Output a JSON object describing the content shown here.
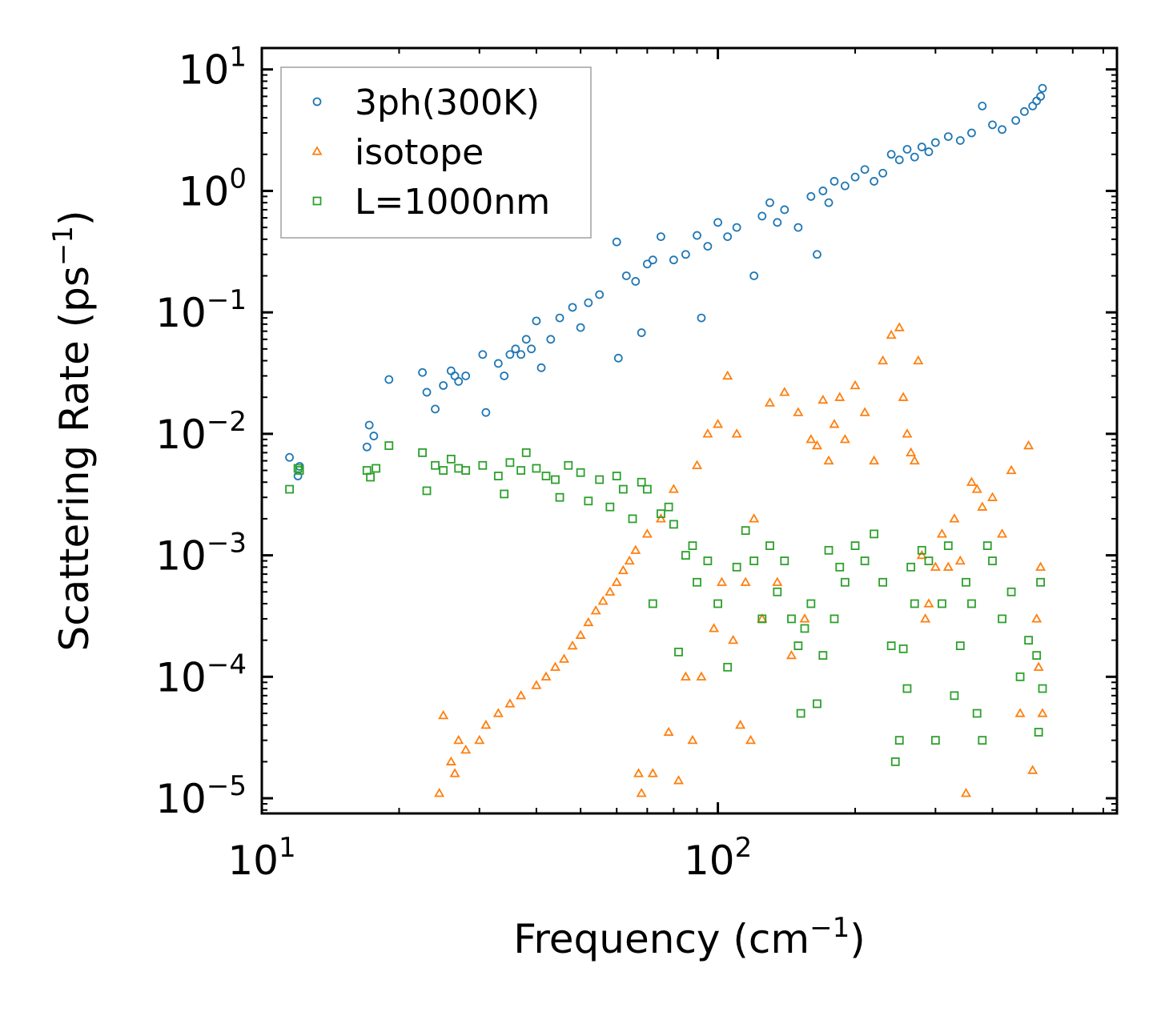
{
  "chart_data": {
    "type": "scatter",
    "title": "",
    "xlabel": "Frequency (cm",
    "xlabel_sup": "−1",
    "xlabel_end": ")",
    "ylabel": "Scattering Rate (ps",
    "ylabel_sup": "−1",
    "ylabel_end": ")",
    "xscale": "log",
    "yscale": "log",
    "xlim": [
      10,
      750
    ],
    "ylim": [
      7.5e-06,
      15
    ],
    "x_ticks": [
      {
        "value": 10,
        "base": "10",
        "exp": "1"
      },
      {
        "value": 100,
        "base": "10",
        "exp": "2"
      }
    ],
    "y_ticks": [
      {
        "value": 10,
        "base": "10",
        "exp": "1"
      },
      {
        "value": 1,
        "base": "10",
        "exp": "0"
      },
      {
        "value": 0.1,
        "base": "10",
        "exp": "−1"
      },
      {
        "value": 0.01,
        "base": "10",
        "exp": "−2"
      },
      {
        "value": 0.001,
        "base": "10",
        "exp": "−3"
      },
      {
        "value": 0.0001,
        "base": "10",
        "exp": "−4"
      },
      {
        "value": 1e-05,
        "base": "10",
        "exp": "−5"
      }
    ],
    "legend_position": "top-left",
    "series": [
      {
        "name": "3ph(300K)",
        "marker": "circle",
        "color": "#1f77b4",
        "points": [
          [
            11.5,
            0.0064
          ],
          [
            12,
            0.0045
          ],
          [
            12.1,
            0.0054
          ],
          [
            17,
            0.0078
          ],
          [
            17.2,
            0.0118
          ],
          [
            17.6,
            0.0096
          ],
          [
            19,
            0.028
          ],
          [
            22.5,
            0.032
          ],
          [
            23,
            0.022
          ],
          [
            24,
            0.016
          ],
          [
            25,
            0.025
          ],
          [
            26,
            0.033
          ],
          [
            26.5,
            0.03
          ],
          [
            27,
            0.027
          ],
          [
            28,
            0.03
          ],
          [
            30.5,
            0.045
          ],
          [
            31,
            0.015
          ],
          [
            33,
            0.038
          ],
          [
            34,
            0.03
          ],
          [
            35,
            0.045
          ],
          [
            36,
            0.05
          ],
          [
            37,
            0.045
          ],
          [
            38,
            0.06
          ],
          [
            39,
            0.05
          ],
          [
            40,
            0.085
          ],
          [
            41,
            0.035
          ],
          [
            43,
            0.06
          ],
          [
            45,
            0.09
          ],
          [
            48,
            0.11
          ],
          [
            50,
            0.075
          ],
          [
            52,
            0.12
          ],
          [
            55,
            0.14
          ],
          [
            60,
            0.38
          ],
          [
            60.5,
            0.042
          ],
          [
            63,
            0.2
          ],
          [
            66,
            0.18
          ],
          [
            68,
            0.068
          ],
          [
            70,
            0.25
          ],
          [
            72,
            0.27
          ],
          [
            75,
            0.42
          ],
          [
            80,
            0.27
          ],
          [
            85,
            0.3
          ],
          [
            90,
            0.43
          ],
          [
            92,
            0.09
          ],
          [
            95,
            0.35
          ],
          [
            100,
            0.55
          ],
          [
            105,
            0.42
          ],
          [
            110,
            0.5
          ],
          [
            120,
            0.2
          ],
          [
            125,
            0.62
          ],
          [
            130,
            0.8
          ],
          [
            135,
            0.55
          ],
          [
            140,
            0.7
          ],
          [
            150,
            0.5
          ],
          [
            160,
            0.9
          ],
          [
            165,
            0.3
          ],
          [
            170,
            1.0
          ],
          [
            175,
            0.8
          ],
          [
            180,
            1.2
          ],
          [
            190,
            1.1
          ],
          [
            200,
            1.3
          ],
          [
            210,
            1.5
          ],
          [
            220,
            1.2
          ],
          [
            230,
            1.4
          ],
          [
            240,
            2.0
          ],
          [
            250,
            1.8
          ],
          [
            260,
            2.2
          ],
          [
            270,
            1.9
          ],
          [
            280,
            2.3
          ],
          [
            290,
            2.1
          ],
          [
            300,
            2.5
          ],
          [
            320,
            2.8
          ],
          [
            340,
            2.6
          ],
          [
            360,
            3.0
          ],
          [
            380,
            5.0
          ],
          [
            400,
            3.5
          ],
          [
            420,
            3.2
          ],
          [
            450,
            3.8
          ],
          [
            470,
            4.5
          ],
          [
            490,
            5.0
          ],
          [
            500,
            5.5
          ],
          [
            510,
            6.0
          ],
          [
            515,
            7.0
          ]
        ]
      },
      {
        "name": "isotope",
        "marker": "triangle",
        "color": "#ff7f0e",
        "points": [
          [
            24.5,
            1.1e-05
          ],
          [
            25,
            4.8e-05
          ],
          [
            26,
            2e-05
          ],
          [
            26.5,
            1.6e-05
          ],
          [
            27,
            3e-05
          ],
          [
            28,
            2.5e-05
          ],
          [
            30,
            3e-05
          ],
          [
            31,
            4e-05
          ],
          [
            33,
            5e-05
          ],
          [
            35,
            6e-05
          ],
          [
            37,
            7e-05
          ],
          [
            40,
            8.5e-05
          ],
          [
            42,
            0.0001
          ],
          [
            44,
            0.00012
          ],
          [
            46,
            0.00014
          ],
          [
            48,
            0.00018
          ],
          [
            50,
            0.00022
          ],
          [
            52,
            0.00028
          ],
          [
            54,
            0.00035
          ],
          [
            56,
            0.00042
          ],
          [
            58,
            0.0005
          ],
          [
            60,
            0.0006
          ],
          [
            62,
            0.00075
          ],
          [
            64,
            0.0009
          ],
          [
            66,
            0.0011
          ],
          [
            67,
            1.6e-05
          ],
          [
            68,
            1.1e-05
          ],
          [
            70,
            0.0015
          ],
          [
            72,
            1.6e-05
          ],
          [
            75,
            0.002
          ],
          [
            78,
            3.5e-05
          ],
          [
            80,
            0.0035
          ],
          [
            82,
            1.4e-05
          ],
          [
            85,
            0.0001
          ],
          [
            88,
            3e-05
          ],
          [
            90,
            0.0055
          ],
          [
            92,
            0.0001
          ],
          [
            95,
            0.01
          ],
          [
            98,
            0.00025
          ],
          [
            100,
            0.012
          ],
          [
            102,
            0.0006
          ],
          [
            105,
            0.03
          ],
          [
            108,
            0.0002
          ],
          [
            110,
            0.01
          ],
          [
            112,
            4e-05
          ],
          [
            115,
            0.0006
          ],
          [
            118,
            3e-05
          ],
          [
            120,
            0.002
          ],
          [
            125,
            0.0003
          ],
          [
            130,
            0.018
          ],
          [
            135,
            0.0006
          ],
          [
            140,
            0.022
          ],
          [
            145,
            0.00015
          ],
          [
            150,
            0.015
          ],
          [
            155,
            0.0003
          ],
          [
            160,
            0.009
          ],
          [
            165,
            0.008
          ],
          [
            170,
            0.019
          ],
          [
            175,
            0.006
          ],
          [
            180,
            0.012
          ],
          [
            185,
            0.02
          ],
          [
            190,
            0.009
          ],
          [
            200,
            0.025
          ],
          [
            210,
            0.015
          ],
          [
            220,
            0.006
          ],
          [
            230,
            0.04
          ],
          [
            240,
            0.065
          ],
          [
            250,
            0.075
          ],
          [
            255,
            0.02
          ],
          [
            260,
            0.01
          ],
          [
            265,
            0.007
          ],
          [
            270,
            0.006
          ],
          [
            275,
            0.04
          ],
          [
            280,
            0.001
          ],
          [
            285,
            0.0003
          ],
          [
            290,
            0.0004
          ],
          [
            300,
            0.0008
          ],
          [
            310,
            0.0015
          ],
          [
            320,
            0.0008
          ],
          [
            330,
            0.002
          ],
          [
            340,
            0.0009
          ],
          [
            350,
            1.1e-05
          ],
          [
            360,
            0.004
          ],
          [
            370,
            0.0035
          ],
          [
            380,
            0.0025
          ],
          [
            400,
            0.003
          ],
          [
            420,
            0.0015
          ],
          [
            440,
            0.005
          ],
          [
            460,
            5e-05
          ],
          [
            480,
            0.008
          ],
          [
            490,
            1.7e-05
          ],
          [
            500,
            0.0003
          ],
          [
            505,
            0.00012
          ],
          [
            510,
            0.0008
          ],
          [
            515,
            5e-05
          ]
        ]
      },
      {
        "name": "L=1000nm",
        "marker": "square",
        "color": "#2ca02c",
        "points": [
          [
            11.5,
            0.0035
          ],
          [
            12,
            0.0052
          ],
          [
            12.1,
            0.005
          ],
          [
            17,
            0.005
          ],
          [
            17.3,
            0.0044
          ],
          [
            17.8,
            0.0052
          ],
          [
            19,
            0.008
          ],
          [
            22.5,
            0.007
          ],
          [
            23,
            0.0034
          ],
          [
            24,
            0.0055
          ],
          [
            25,
            0.005
          ],
          [
            26,
            0.0062
          ],
          [
            27,
            0.0052
          ],
          [
            28,
            0.005
          ],
          [
            30.5,
            0.0055
          ],
          [
            33,
            0.0045
          ],
          [
            34,
            0.0032
          ],
          [
            35,
            0.0058
          ],
          [
            37,
            0.005
          ],
          [
            38,
            0.007
          ],
          [
            40,
            0.0052
          ],
          [
            42,
            0.0045
          ],
          [
            44,
            0.0042
          ],
          [
            45,
            0.003
          ],
          [
            47,
            0.0055
          ],
          [
            50,
            0.0048
          ],
          [
            52,
            0.0028
          ],
          [
            55,
            0.0042
          ],
          [
            58,
            0.0025
          ],
          [
            60,
            0.0045
          ],
          [
            62,
            0.0035
          ],
          [
            65,
            0.002
          ],
          [
            68,
            0.004
          ],
          [
            70,
            0.0035
          ],
          [
            72,
            0.0004
          ],
          [
            75,
            0.0022
          ],
          [
            78,
            0.0025
          ],
          [
            80,
            0.0018
          ],
          [
            82,
            0.00016
          ],
          [
            85,
            0.001
          ],
          [
            88,
            0.0012
          ],
          [
            90,
            0.0006
          ],
          [
            95,
            0.0009
          ],
          [
            100,
            0.0004
          ],
          [
            105,
            0.00012
          ],
          [
            110,
            0.0008
          ],
          [
            115,
            0.0016
          ],
          [
            120,
            0.0009
          ],
          [
            125,
            0.0003
          ],
          [
            130,
            0.0012
          ],
          [
            135,
            0.0005
          ],
          [
            140,
            0.0009
          ],
          [
            145,
            0.0003
          ],
          [
            150,
            0.00018
          ],
          [
            152,
            5e-05
          ],
          [
            155,
            0.00025
          ],
          [
            160,
            0.0004
          ],
          [
            165,
            6e-05
          ],
          [
            170,
            0.00015
          ],
          [
            175,
            0.0011
          ],
          [
            180,
            0.0003
          ],
          [
            185,
            0.0008
          ],
          [
            190,
            0.0006
          ],
          [
            200,
            0.0012
          ],
          [
            210,
            0.0009
          ],
          [
            220,
            0.0015
          ],
          [
            230,
            0.0006
          ],
          [
            240,
            0.00018
          ],
          [
            245,
            2e-05
          ],
          [
            250,
            3e-05
          ],
          [
            255,
            0.00017
          ],
          [
            260,
            8e-05
          ],
          [
            265,
            0.0008
          ],
          [
            270,
            0.0004
          ],
          [
            280,
            0.0011
          ],
          [
            290,
            0.0009
          ],
          [
            300,
            3e-05
          ],
          [
            310,
            0.0004
          ],
          [
            320,
            0.0012
          ],
          [
            330,
            7e-05
          ],
          [
            340,
            0.00018
          ],
          [
            350,
            0.0006
          ],
          [
            360,
            0.0004
          ],
          [
            370,
            5e-05
          ],
          [
            380,
            3e-05
          ],
          [
            390,
            0.0012
          ],
          [
            400,
            0.0009
          ],
          [
            420,
            0.0003
          ],
          [
            440,
            0.0005
          ],
          [
            460,
            0.0001
          ],
          [
            480,
            0.0002
          ],
          [
            500,
            0.00015
          ],
          [
            505,
            3.5e-05
          ],
          [
            510,
            0.0006
          ],
          [
            515,
            8e-05
          ]
        ]
      }
    ]
  }
}
